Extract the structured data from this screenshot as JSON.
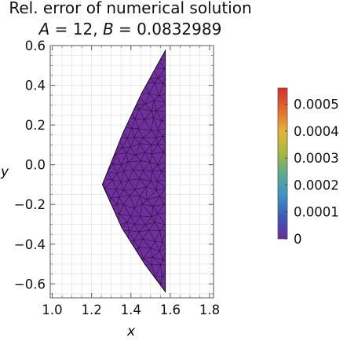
{
  "chart_data": {
    "type": "heatmap",
    "title": "Rel. error of numerical solution",
    "subtitle": {
      "a_symbol": "A",
      "a_text": " = 12, ",
      "b_symbol": "B",
      "b_text": " = 0.0832989"
    },
    "xlabel": "x",
    "ylabel": "y",
    "xlim": [
      0.99,
      1.82
    ],
    "ylim": [
      -0.67,
      0.6
    ],
    "xticks": [
      1.0,
      1.2,
      1.4,
      1.6,
      1.8
    ],
    "xtick_labels": [
      "1.0",
      "1.2",
      "1.4",
      "1.6",
      "1.8"
    ],
    "yticks": [
      0.6,
      0.4,
      0.2,
      0.0,
      -0.2,
      -0.4,
      -0.6
    ],
    "ytick_labels": [
      "0.6",
      "0.4",
      "0.2",
      "0.0",
      "−0.2",
      "−0.4",
      "−0.6"
    ],
    "domain_polygon": [
      {
        "x": 1.575,
        "y": 0.575
      },
      {
        "x": 1.455,
        "y": 0.36
      },
      {
        "x": 1.36,
        "y": 0.16
      },
      {
        "x": 1.255,
        "y": -0.1
      },
      {
        "x": 1.355,
        "y": -0.32
      },
      {
        "x": 1.47,
        "y": -0.5
      },
      {
        "x": 1.575,
        "y": -0.64
      }
    ],
    "mesh": "triangular",
    "field_value": 0,
    "colorbar": {
      "range": [
        0,
        0.00056
      ],
      "ticks": [
        0,
        0.0001,
        0.0002,
        0.0003,
        0.0004,
        0.0005
      ],
      "tick_labels": [
        "0",
        "0.0001",
        "0.0002",
        "0.0003",
        "0.0004",
        "0.0005"
      ],
      "colors": [
        "#6b2c9a",
        "#3d57b8",
        "#3c93c6",
        "#5aaa90",
        "#a8b83f",
        "#e6b33a",
        "#e26a2c",
        "#d42e2e"
      ]
    },
    "grid": true,
    "fill_color": "#6f2f9c",
    "edge_color": "#1a0a24"
  }
}
